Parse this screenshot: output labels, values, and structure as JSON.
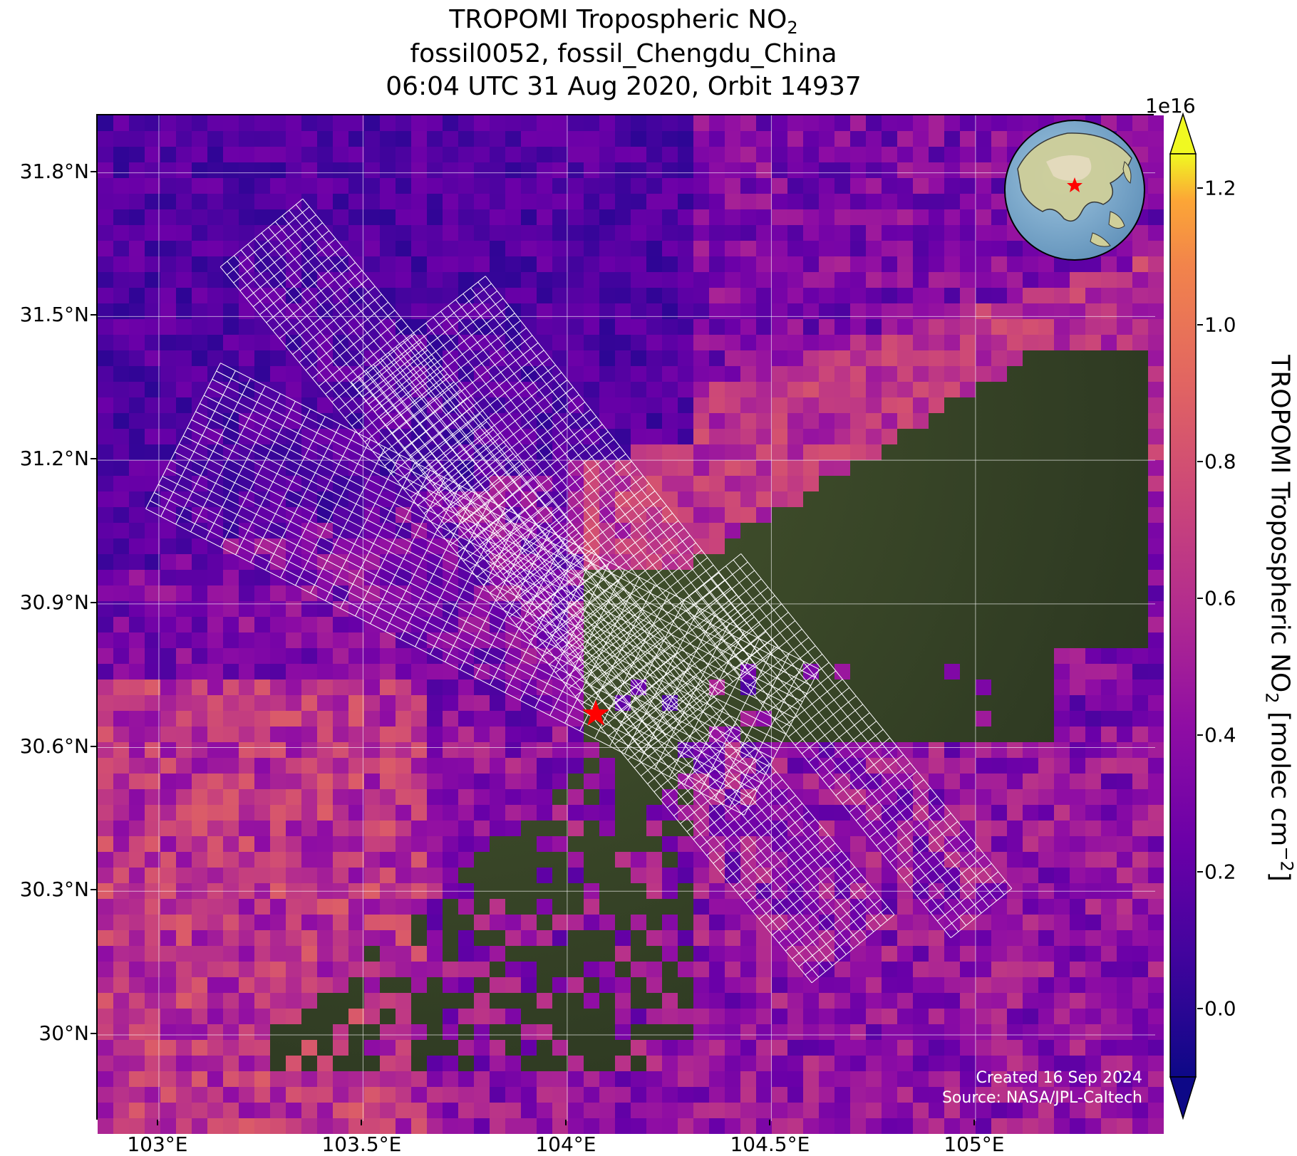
{
  "title": {
    "line1_prefix": "TROPOMI Tropospheric NO",
    "line1_sub": "2",
    "line2": "fossil0052, fossil_Chengdu_China",
    "line3": "06:04 UTC 31 Aug 2020, Orbit 14937"
  },
  "map": {
    "lon_range": [
      102.85,
      105.44
    ],
    "lat_range": [
      29.82,
      31.92
    ],
    "lon_ticks": [
      {
        "value": 103.0,
        "label": "103°E"
      },
      {
        "value": 103.5,
        "label": "103.5°E"
      },
      {
        "value": 104.0,
        "label": "104°E"
      },
      {
        "value": 104.5,
        "label": "104.5°E"
      },
      {
        "value": 105.0,
        "label": "105°E"
      }
    ],
    "lat_ticks": [
      {
        "value": 31.8,
        "label": "31.8°N"
      },
      {
        "value": 31.5,
        "label": "31.5°N"
      },
      {
        "value": 31.2,
        "label": "31.2°N"
      },
      {
        "value": 30.9,
        "label": "30.9°N"
      },
      {
        "value": 30.6,
        "label": "30.6°N"
      },
      {
        "value": 30.3,
        "label": "30.3°N"
      },
      {
        "value": 30.0,
        "label": "30°N"
      }
    ],
    "grid": true,
    "target_marker": {
      "lon": 104.07,
      "lat": 30.67,
      "color": "#ff0000",
      "icon": "star-icon"
    }
  },
  "colorbar": {
    "exponent_label": "1e16",
    "range": [
      -0.1,
      1.25
    ],
    "ticks": [
      {
        "value": 0.0,
        "label": "0.0"
      },
      {
        "value": 0.2,
        "label": "0.2"
      },
      {
        "value": 0.4,
        "label": "0.4"
      },
      {
        "value": 0.6,
        "label": "0.6"
      },
      {
        "value": 0.8,
        "label": "0.8"
      },
      {
        "value": 1.0,
        "label": "1.0"
      },
      {
        "value": 1.2,
        "label": "1.2"
      }
    ],
    "label_prefix": "TROPOMI Tropospheric NO",
    "label_sub": "2",
    "label_suffix": " [molec cm",
    "label_sup": "−2",
    "label_end": "]",
    "colormap": "plasma"
  },
  "footer": {
    "created": "Created 16 Sep 2024",
    "source": "Source: NASA/JPL-Caltech"
  },
  "inset_globe": {
    "icon": "globe-icon",
    "marker_color": "#ff0000"
  }
}
